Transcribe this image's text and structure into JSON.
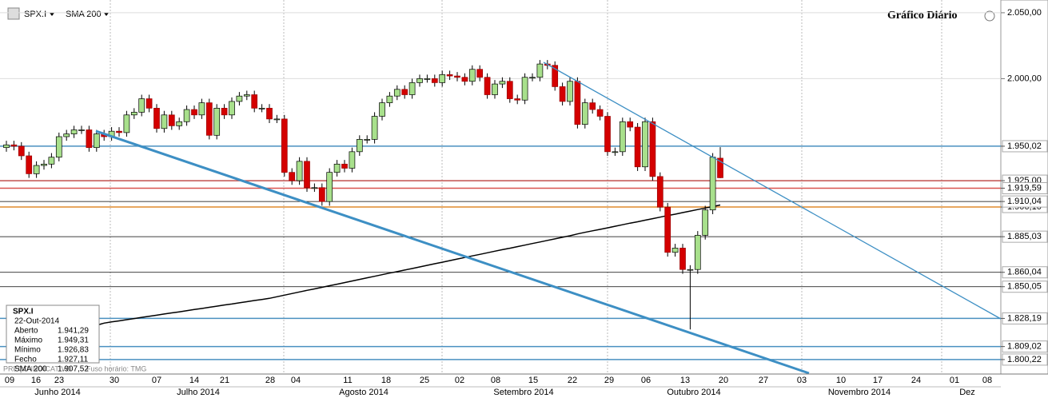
{
  "chart_data": {
    "type": "candlestick",
    "symbol": "SPX.I",
    "indicator": "SMA 200",
    "title": "Gráfico Diário",
    "footer": {
      "price_note": "PREÇO INDICATIVO",
      "timezone": "Fuso horário: TMG"
    },
    "log_scale": true,
    "ylim": [
      1790.5,
      2059.8
    ],
    "yticks": [
      {
        "value": 2050,
        "label": "2.050,00"
      },
      {
        "value": 2000,
        "label": "2.000,00"
      }
    ],
    "levels": [
      {
        "value": 1950.02,
        "label": "1.950,02",
        "color": "#4a90c0"
      },
      {
        "value": 1925,
        "label": "1.925,00",
        "color": "#c0504d"
      },
      {
        "value": 1919.59,
        "label": "1.919,59",
        "color": "#d9534f"
      },
      {
        "value": 1906.1,
        "label": "1.906,10",
        "color": "#e08a2c"
      },
      {
        "value": 1910.04,
        "label": "1.910,04",
        "color": "#000000"
      },
      {
        "value": 1885.03,
        "label": "1.885,03",
        "color": "#000000"
      },
      {
        "value": 1860.04,
        "label": "1.860,04",
        "color": "#000000"
      },
      {
        "value": 1850.05,
        "label": "1.850,05",
        "color": "#000000"
      },
      {
        "value": 1828.19,
        "label": "1.828,19",
        "color": "#4a90c0"
      },
      {
        "value": 1809.02,
        "label": "1.809,02",
        "color": "#4a90c0"
      },
      {
        "value": 1800.22,
        "label": "1.800,22",
        "color": "#4a90c0"
      }
    ],
    "day_labels": [
      "09",
      "16",
      "23",
      "30",
      "07",
      "14",
      "21",
      "28",
      "04",
      "11",
      "18",
      "25",
      "02",
      "08",
      "15",
      "22",
      "29",
      "06",
      "13",
      "20",
      "27",
      "03",
      "10",
      "17",
      "24",
      "01",
      "08"
    ],
    "month_labels": [
      "Junho 2014",
      "Julho 2014",
      "Agosto 2014",
      "Setembro 2014",
      "Outubro 2014",
      "Novembro 2014",
      "Dez"
    ],
    "up_color": "#a8e08c",
    "down_color": "#d40000",
    "sma_color": "#000000",
    "open": [
      1949,
      1951,
      1950,
      1943,
      1930,
      1936,
      1937,
      1942,
      1957,
      1959,
      1962,
      1962,
      1949,
      1959,
      1957,
      1961,
      1960,
      1973,
      1975,
      1985,
      1978,
      1963,
      1973,
      1965,
      1968,
      1977,
      1973,
      1982,
      1958,
      1978,
      1973,
      1983,
      1987,
      1988,
      1978,
      1978,
      1970,
      1970,
      1931,
      1925,
      1939,
      1920,
      1920,
      1910,
      1931,
      1937,
      1934,
      1946,
      1955,
      1955,
      1972,
      1982,
      1987,
      1992,
      1988,
      1997,
      2000,
      2000,
      1997,
      2003,
      2002,
      2001,
      1998,
      2007,
      2001,
      1988,
      1996,
      1998,
      1985,
      1984,
      2001,
      2001,
      2011,
      2010,
      1994,
      1983,
      1998,
      1966,
      1982,
      1977,
      1972,
      1946,
      1946,
      1968,
      1964,
      1935,
      1968,
      1928,
      1906,
      1874,
      1877,
      1862,
      1862,
      1886,
      1904,
      1941.29
    ],
    "high": [
      1954,
      1954,
      1953,
      1946,
      1939,
      1940,
      1945,
      1960,
      1962,
      1965,
      1965,
      1965,
      1962,
      1962,
      1964,
      1964,
      1976,
      1978,
      1988,
      1988,
      1981,
      1976,
      1976,
      1971,
      1980,
      1980,
      1985,
      1985,
      1981,
      1981,
      1986,
      1990,
      1991,
      1991,
      1981,
      1981,
      1973,
      1973,
      1934,
      1942,
      1942,
      1923,
      1923,
      1934,
      1940,
      1940,
      1949,
      1958,
      1958,
      1975,
      1985,
      1990,
      1995,
      1995,
      2000,
      2003,
      2003,
      2003,
      2006,
      2006,
      2005,
      2004,
      2010,
      2010,
      2004,
      1999,
      2001,
      2001,
      1988,
      2004,
      2004,
      2014,
      2014,
      2013,
      1997,
      2001,
      2001,
      1985,
      1985,
      1980,
      1975,
      1949,
      1971,
      1971,
      1967,
      1971,
      1971,
      1931,
      1909,
      1880,
      1880,
      1865,
      1889,
      1907,
      1945,
      1949.31
    ],
    "low": [
      1946,
      1947,
      1940,
      1927,
      1927,
      1933,
      1934,
      1939,
      1954,
      1956,
      1959,
      1946,
      1946,
      1954,
      1954,
      1957,
      1957,
      1970,
      1972,
      1975,
      1960,
      1960,
      1962,
      1962,
      1965,
      1970,
      1970,
      1955,
      1955,
      1970,
      1970,
      1980,
      1984,
      1975,
      1975,
      1967,
      1967,
      1928,
      1922,
      1922,
      1917,
      1917,
      1907,
      1907,
      1928,
      1931,
      1931,
      1943,
      1952,
      1952,
      1969,
      1979,
      1984,
      1985,
      1985,
      1994,
      1997,
      1994,
      1994,
      1999,
      1998,
      1995,
      1995,
      1998,
      1985,
      1985,
      1993,
      1982,
      1981,
      1981,
      1998,
      1998,
      2007,
      1991,
      1980,
      1980,
      1963,
      1963,
      1974,
      1969,
      1943,
      1943,
      1943,
      1961,
      1932,
      1932,
      1925,
      1903,
      1871,
      1871,
      1859,
      1820.66,
      1859,
      1883,
      1901,
      1926.83
    ],
    "close": [
      1951,
      1950,
      1943,
      1930,
      1936,
      1937,
      1942,
      1957,
      1959,
      1962,
      1962,
      1949,
      1959,
      1957,
      1961,
      1960,
      1973,
      1975,
      1985,
      1978,
      1963,
      1973,
      1965,
      1968,
      1977,
      1973,
      1982,
      1958,
      1978,
      1973,
      1983,
      1987,
      1988,
      1978,
      1978,
      1970,
      1970,
      1931,
      1925,
      1939,
      1920,
      1920,
      1910,
      1931,
      1937,
      1934,
      1946,
      1955,
      1955,
      1972,
      1982,
      1987,
      1992,
      1988,
      1997,
      2000,
      2000,
      1997,
      2003,
      2002,
      2001,
      1998,
      2007,
      2001,
      1988,
      1996,
      1998,
      1985,
      1984,
      2001,
      2001,
      2011,
      2010,
      1994,
      1983,
      1998,
      1966,
      1982,
      1977,
      1972,
      1946,
      1946,
      1968,
      1964,
      1935,
      1968,
      1928,
      1906,
      1874,
      1877,
      1862,
      1862,
      1886,
      1904,
      1942,
      1927.11
    ],
    "sma200": [
      1805,
      1806.5,
      1808,
      1809.5,
      1811,
      1812.7,
      1814.2,
      1815.8,
      1817.3,
      1818.8,
      1820.4,
      1822,
      1823.5,
      1825,
      1825.8,
      1826.5,
      1827.3,
      1828.1,
      1828.9,
      1829.6,
      1830.4,
      1831.2,
      1832,
      1832.7,
      1833.5,
      1834.3,
      1835,
      1835.8,
      1836.6,
      1837.4,
      1838.1,
      1838.9,
      1839.7,
      1840.5,
      1841.2,
      1842,
      1843.1,
      1844.2,
      1845.3,
      1846.4,
      1847.5,
      1848.5,
      1849.6,
      1850.7,
      1851.8,
      1852.9,
      1854,
      1855.1,
      1856.2,
      1857.3,
      1858.4,
      1859.5,
      1860.5,
      1861.6,
      1862.7,
      1863.8,
      1864.9,
      1866,
      1867.1,
      1868.2,
      1869.3,
      1870.4,
      1871.5,
      1872.6,
      1873.7,
      1874.8,
      1875.9,
      1876.9,
      1878,
      1879.1,
      1880.2,
      1881.3,
      1882.4,
      1883.5,
      1884.6,
      1885.7,
      1887,
      1888.1,
      1889.2,
      1890.2,
      1891.3,
      1892.4,
      1893.5,
      1894.6,
      1895.6,
      1896.7,
      1897.8,
      1898.9,
      1900,
      1901,
      1902.1,
      1903.2,
      1904.3,
      1905.4,
      1906.4,
      1907.52
    ],
    "info_box": {
      "title": "SPX.I",
      "date": "22-Out-2014",
      "rows": [
        {
          "label": "Aberto",
          "value": "1.941,29"
        },
        {
          "label": "Máximo",
          "value": "1.949,31"
        },
        {
          "label": "Mínimo",
          "value": "1.926,83"
        },
        {
          "label": "Fecho",
          "value": "1.927,11"
        },
        {
          "label": "SMA 200",
          "value": "1.907,52"
        }
      ]
    }
  }
}
